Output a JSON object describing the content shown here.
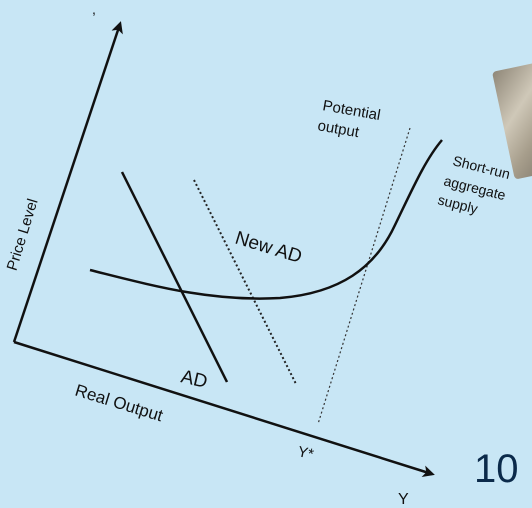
{
  "labels": {
    "price_level": "Price Level",
    "real_output": "Real Output",
    "y_axis_letter": "Y",
    "y_star": "Y*",
    "potential_output_line1": "Potential",
    "potential_output_line2": "output",
    "sras_line1": "Short-run",
    "sras_line2": "aggregate",
    "sras_line3": "supply",
    "new_ad": "New AD",
    "ad": "AD",
    "top_mark": ","
  },
  "overlay": {
    "number_fragment": "10"
  },
  "colors": {
    "background": "#c8e6f5",
    "ink": "#111111",
    "number_text": "#0b2a4a"
  }
}
